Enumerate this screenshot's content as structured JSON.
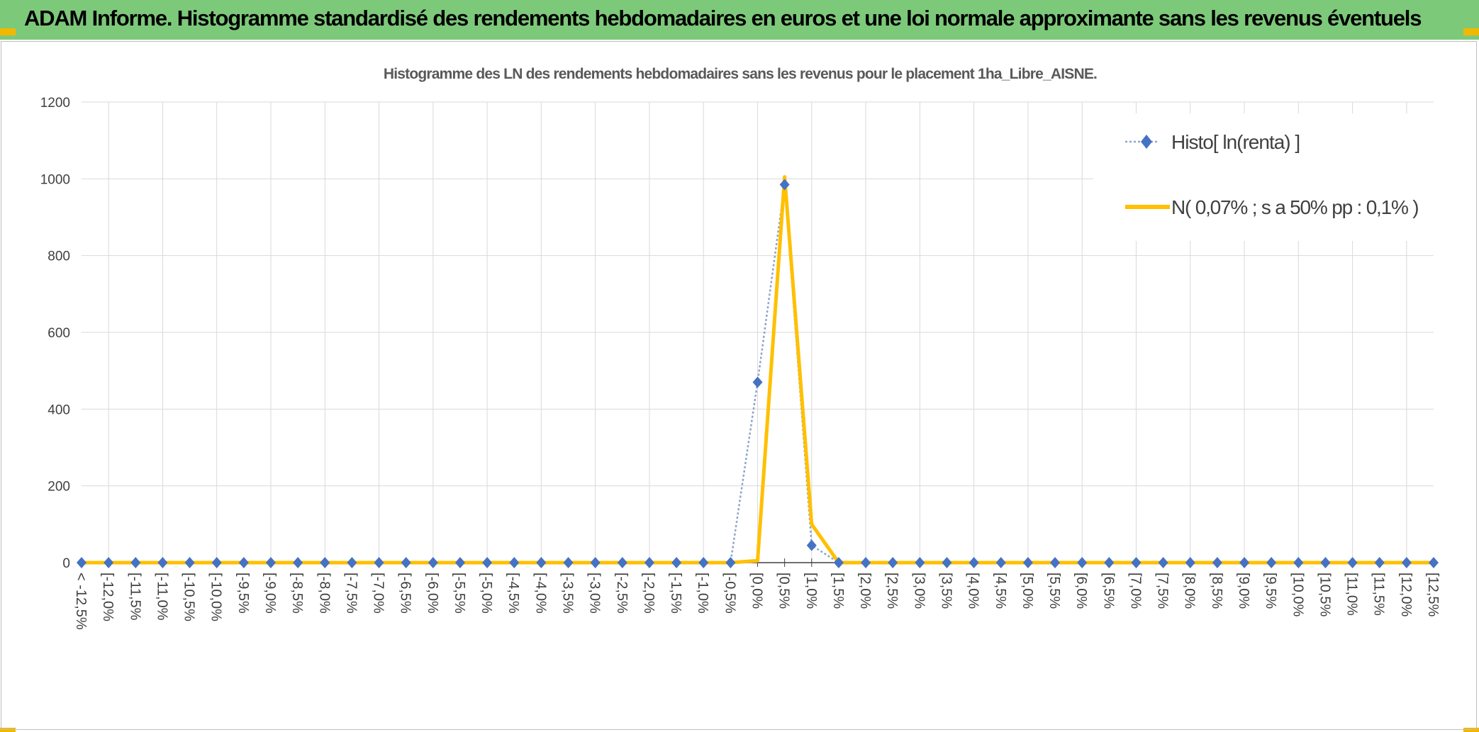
{
  "banner": {
    "title": "ADAM Informe. Histogramme standardisé des rendements hebdomadaires en euros et une loi normale approximante sans les revenus éventuels"
  },
  "colors": {
    "banner": "#7dc97a",
    "accent": "#f2b800",
    "series_histo": "#4472c4",
    "series_normal": "#ffc000",
    "grid": "#d9d9d9"
  },
  "chart_data": {
    "type": "line",
    "title": "Histogramme des LN des rendements hebdomadaires sans les revenus pour le placement 1ha_Libre_AISNE.",
    "xlabel": "",
    "ylabel": "",
    "ylim": [
      0,
      1200
    ],
    "yticks": [
      0,
      200,
      400,
      600,
      800,
      1000,
      1200
    ],
    "grid": true,
    "legend_position": "top-right",
    "categories": [
      "< -12,5%",
      "[-12,0%",
      "[-11,5%",
      "[-11,0%",
      "[-10,5%",
      "[-10,0%",
      "[-9,5%",
      "[-9,0%",
      "[-8,5%",
      "[-8,0%",
      "[-7,5%",
      "[-7,0%",
      "[-6,5%",
      "[-6,0%",
      "[-5,5%",
      "[-5,0%",
      "[-4,5%",
      "[-4,0%",
      "[-3,5%",
      "[-3,0%",
      "[-2,5%",
      "[-2,0%",
      "[-1,5%",
      "[-1,0%",
      "[-0,5%",
      "[0,0%",
      "[0,5%",
      "[1,0%",
      "[1,5%",
      "[2,0%",
      "[2,5%",
      "[3,0%",
      "[3,5%",
      "[4,0%",
      "[4,5%",
      "[5,0%",
      "[5,5%",
      "[6,0%",
      "[6,5%",
      "[7,0%",
      "[7,5%",
      "[8,0%",
      "[8,5%",
      "[9,0%",
      "[9,5%",
      "[10,0%",
      "[10,5%",
      "[11,0%",
      "[11,5%",
      "[12,0%",
      "[12,5%"
    ],
    "series": [
      {
        "name": "Histo[ ln(renta) ]",
        "style": "dotted line with diamond markers",
        "color": "#4472c4",
        "values": [
          0,
          0,
          0,
          0,
          0,
          0,
          0,
          0,
          0,
          0,
          0,
          0,
          0,
          0,
          0,
          0,
          0,
          0,
          0,
          0,
          0,
          0,
          0,
          0,
          0,
          470,
          985,
          45,
          0,
          0,
          0,
          0,
          0,
          0,
          0,
          0,
          0,
          0,
          0,
          0,
          0,
          0,
          0,
          0,
          0,
          0,
          0,
          0,
          0,
          0,
          0
        ]
      },
      {
        "name": "N( 0,07% ; s a 50% pp : 0,1% )",
        "style": "solid line",
        "color": "#ffc000",
        "values": [
          0,
          0,
          0,
          0,
          0,
          0,
          0,
          0,
          0,
          0,
          0,
          0,
          0,
          0,
          0,
          0,
          0,
          0,
          0,
          0,
          0,
          0,
          0,
          0,
          0,
          5,
          1005,
          100,
          0,
          0,
          0,
          0,
          0,
          0,
          0,
          0,
          0,
          0,
          0,
          0,
          0,
          0,
          0,
          0,
          0,
          0,
          0,
          0,
          0,
          0,
          0
        ]
      }
    ]
  }
}
